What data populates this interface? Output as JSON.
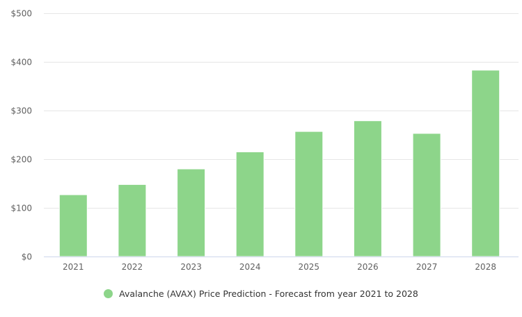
{
  "chart_data": {
    "type": "bar",
    "title": "",
    "xlabel": "",
    "ylabel": "",
    "categories": [
      "2021",
      "2022",
      "2023",
      "2024",
      "2025",
      "2026",
      "2027",
      "2028"
    ],
    "series": [
      {
        "name": "Avalanche (AVAX) Price Prediction - Forecast from year 2021 to 2028",
        "color": "#8dd58a",
        "values": [
          127,
          148,
          180,
          215,
          257,
          279,
          253,
          383
        ]
      }
    ],
    "ylim": [
      0,
      500
    ],
    "yticks": [
      0,
      100,
      200,
      300,
      400,
      500
    ],
    "ytick_labels": [
      "$0",
      "$100",
      "$200",
      "$300",
      "$400",
      "$500"
    ],
    "grid": true,
    "legend_position": "bottom-center"
  },
  "legend": {
    "label": "Avalanche (AVAX) Price Prediction - Forecast from year 2021 to 2028",
    "color": "#8dd58a"
  },
  "colors": {
    "grid": "#e6e6e6",
    "axis": "#ccd6eb",
    "bar": "#8dd58a"
  }
}
